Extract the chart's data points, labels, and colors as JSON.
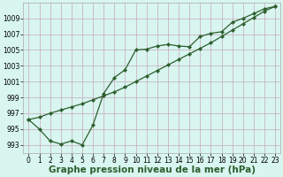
{
  "xlabel": "Graphe pression niveau de la mer (hPa)",
  "line1_x": [
    0,
    1,
    2,
    3,
    4,
    5,
    6,
    7,
    8,
    9,
    10,
    11,
    12,
    13,
    14,
    15,
    16,
    17,
    18,
    19,
    20,
    21,
    22,
    23
  ],
  "line1_y": [
    996.2,
    995.0,
    993.5,
    993.1,
    993.5,
    993.0,
    995.5,
    999.5,
    1001.5,
    1002.5,
    1005.0,
    1005.1,
    1005.5,
    1005.7,
    1005.5,
    1005.4,
    1006.7,
    1007.1,
    1007.3,
    1008.5,
    1009.0,
    1009.6,
    1010.2,
    1010.5
  ],
  "line2_x": [
    0,
    1,
    2,
    3,
    4,
    5,
    6,
    7,
    8,
    9,
    10,
    11,
    12,
    13,
    14,
    15,
    16,
    17,
    18,
    19,
    20,
    21,
    22,
    23
  ],
  "line2_y": [
    996.2,
    996.5,
    997.0,
    997.4,
    997.8,
    998.2,
    998.7,
    999.2,
    999.7,
    1000.3,
    1001.0,
    1001.7,
    1002.4,
    1003.1,
    1003.8,
    1004.5,
    1005.2,
    1005.9,
    1006.7,
    1007.5,
    1008.3,
    1009.1,
    1009.9,
    1010.5
  ],
  "line_color": "#2d5e2d",
  "bg_color": "#d8f5f0",
  "grid_color": "#c8a8b8",
  "ylim": [
    992,
    1011
  ],
  "yticks": [
    993,
    995,
    997,
    999,
    1001,
    1003,
    1005,
    1007,
    1009
  ],
  "xlim": [
    -0.5,
    23.5
  ],
  "xticks": [
    0,
    1,
    2,
    3,
    4,
    5,
    6,
    7,
    8,
    9,
    10,
    11,
    12,
    13,
    14,
    15,
    16,
    17,
    18,
    19,
    20,
    21,
    22,
    23
  ],
  "marker": "D",
  "markersize": 2.2,
  "linewidth": 0.9,
  "xlabel_fontsize": 7.5,
  "tick_fontsize": 5.5
}
